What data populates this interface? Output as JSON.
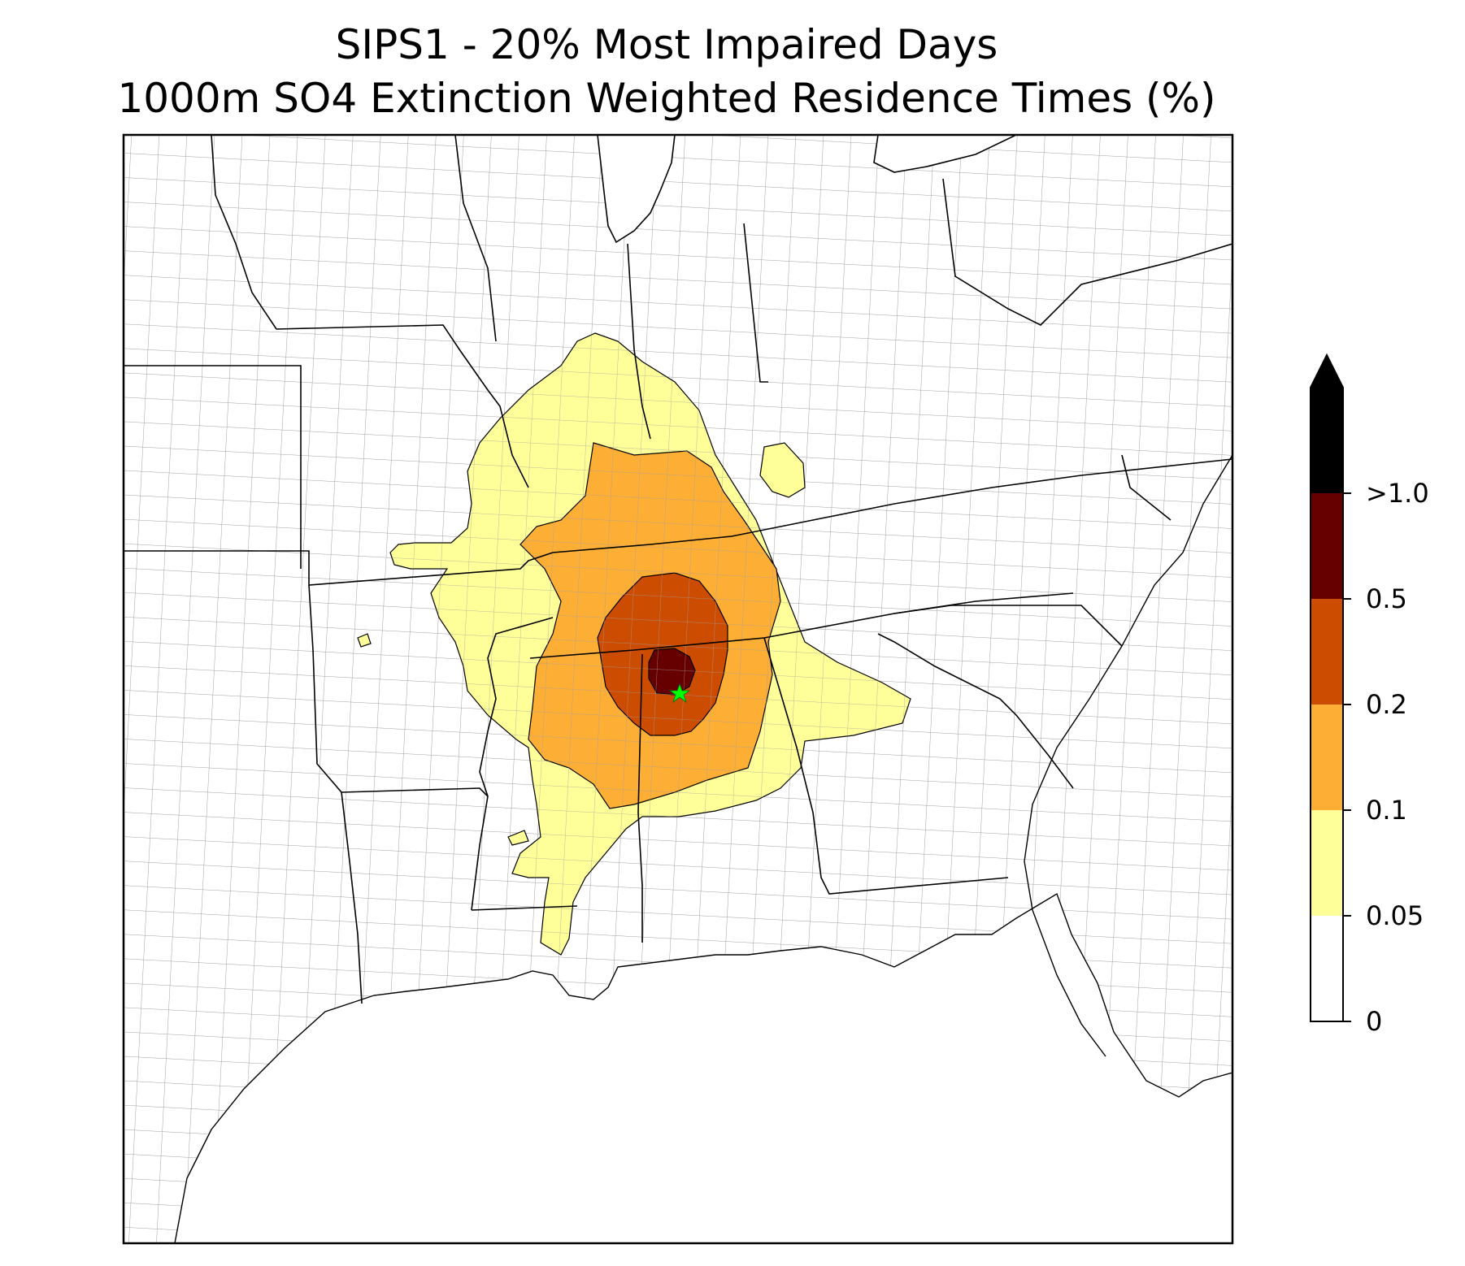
{
  "title": {
    "line1": "SIPS1 - 20% Most Impaired Days",
    "line2": "1000m SO4 Extinction Weighted Residence Times (%)"
  },
  "colorbar": {
    "labels": [
      "0",
      "0.05",
      "0.1",
      "0.2",
      "0.5",
      ">1.0"
    ],
    "colors": {
      "0-0.05": "#ffffff",
      "0.05-0.1": "#ffff99",
      "0.1-0.2": "#fdae35",
      "0.2-0.5": "#cc4c02",
      "0.5-1.0": "#660000",
      ">1.0": "#000000"
    },
    "extend": "max"
  },
  "map": {
    "source_marker": "green-star",
    "boundary_color": "#000000",
    "county_color": "#999999"
  }
}
